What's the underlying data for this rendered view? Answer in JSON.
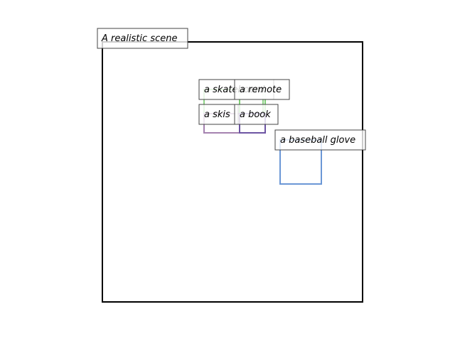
{
  "scene": {
    "caption": "A realistic scene"
  },
  "objects": [
    {
      "label": "a skateboard",
      "color": "#8fd487"
    },
    {
      "label": "a remote",
      "color": "#7fcf76"
    },
    {
      "label": "a skis",
      "color": "#a582b0"
    },
    {
      "label": "a book",
      "color": "#6d55a3"
    },
    {
      "label": "a baseball glove",
      "color": "#6b97d6"
    }
  ]
}
